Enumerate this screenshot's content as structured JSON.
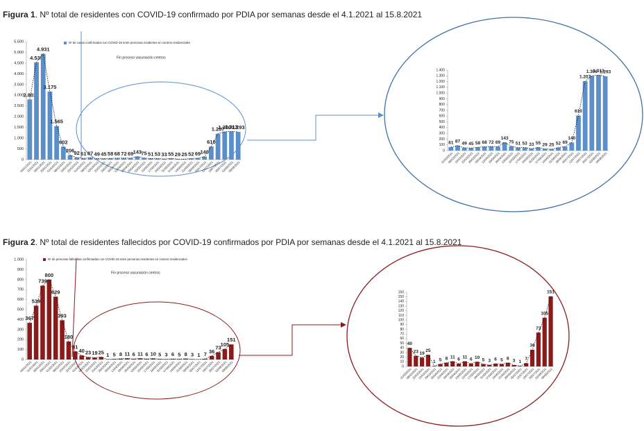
{
  "figures": [
    {
      "label": "Figura 1",
      "caption": ". Nº total de residentes con COVID-19 confirmado por PDIA por semanas desde el 4.1.2021 al 15.8.2021"
    },
    {
      "label": "Figura 2",
      "caption": ". Nº total de residentes fallecidos por COVID-19 confirmados por PDIA por semanas desde el 4.1.2021 al 15.8.2021"
    }
  ],
  "chart_data": [
    {
      "type": "bar",
      "color": "#5b8fc9",
      "legend": "Nº de casos confirmados con COVID-19 entre personas residentes en centros residenciales",
      "annotation": "Fin proceso vacunación centros",
      "categories": [
        "04/01/2021",
        "11/01/2021",
        "18/01/2021",
        "25/01/2021",
        "01/02/2021",
        "08/02/2021",
        "15/02/2021",
        "22/02/2021",
        "01/03/2021",
        "08/03/2021",
        "15/03/2021",
        "22/03/2021",
        "29/03/2021",
        "05/04/2021",
        "12/04/2021",
        "19/04/2021",
        "26/04/2021",
        "03/05/2021",
        "10/05/2021",
        "17/05/2021",
        "24/05/2021",
        "31/05/2021",
        "07/06/2021",
        "14/06/2021",
        "21/06/2021",
        "28/06/2021",
        "05/07/2021",
        "12/07/2021",
        "19/07/2021",
        "26/07/2021",
        "02/08/2021",
        "09/08/2021"
      ],
      "values": [
        2803,
        4535,
        4931,
        3175,
        1565,
        602,
        206,
        92,
        61,
        87,
        49,
        45,
        58,
        68,
        72,
        69,
        143,
        75,
        51,
        53,
        33,
        55,
        29,
        25,
        52,
        69,
        140,
        610,
        1207,
        1300,
        1313,
        1293
      ],
      "value_labels": [
        "2.803",
        "4.535",
        "4.931",
        "3.175",
        "1.565",
        "602",
        "206",
        "92",
        "61",
        "87",
        "49",
        "45",
        "58",
        "68",
        "72",
        "69",
        "143",
        "75",
        "51",
        "53",
        "33",
        "55",
        "29",
        "25",
        "52",
        "69",
        "140",
        "610",
        "1.207",
        "1.300",
        "1.313",
        "1.293"
      ],
      "ylim": [
        0,
        5500
      ],
      "yticks": [
        0,
        500,
        {
          "value": 1000,
          "label": "1.000"
        },
        {
          "value": 1500,
          "label": "1.500"
        },
        {
          "value": 2000,
          "label": "2.000"
        },
        {
          "value": 2500,
          "label": "2.500"
        },
        {
          "value": 3000,
          "label": "3.000"
        },
        {
          "value": 3500,
          "label": "3.500"
        },
        {
          "value": 4000,
          "label": "4.000"
        },
        {
          "value": 4500,
          "label": "4.500"
        },
        {
          "value": 5000,
          "label": "5.000"
        },
        {
          "value": 5500,
          "label": "5.500"
        }
      ]
    },
    {
      "type": "bar",
      "color": "#5b8fc9",
      "categories": [
        "01/03/2021",
        "08/03/2021",
        "15/03/2021",
        "22/03/2021",
        "29/03/2021",
        "05/04/2021",
        "12/04/2021",
        "19/04/2021",
        "26/04/2021",
        "03/05/2021",
        "10/05/2021",
        "17/05/2021",
        "24/05/2021",
        "31/05/2021",
        "07/06/2021",
        "14/06/2021",
        "21/06/2021",
        "28/06/2021",
        "05/07/2021",
        "12/07/2021",
        "19/07/2021",
        "26/07/2021",
        "02/08/2021",
        "09/08/2021"
      ],
      "values": [
        61,
        87,
        49,
        45,
        58,
        68,
        72,
        69,
        143,
        75,
        51,
        53,
        33,
        55,
        29,
        25,
        52,
        69,
        140,
        610,
        1207,
        1300,
        1313,
        1293
      ],
      "value_labels": [
        "61",
        "87",
        "49",
        "45",
        "58",
        "68",
        "72",
        "69",
        "143",
        "75",
        "51",
        "53",
        "33",
        "55",
        "29",
        "25",
        "52",
        "69",
        "140",
        "610",
        "1.207",
        "1.300",
        "1.313",
        "1.293"
      ],
      "ylim": [
        0,
        1400
      ],
      "yticks": [
        0,
        100,
        200,
        300,
        400,
        500,
        600,
        700,
        800,
        900,
        {
          "value": 1000,
          "label": "1.000"
        },
        {
          "value": 1100,
          "label": "1.100"
        },
        {
          "value": 1200,
          "label": "1.200"
        },
        {
          "value": 1300,
          "label": "1.300"
        },
        {
          "value": 1400,
          "label": "1.400"
        }
      ]
    },
    {
      "type": "bar",
      "color": "#8b1a1a",
      "legend": "Nº de personas fallecidas confirmadas con COVID-19 entre personas residentes en centros residenciales",
      "annotation": "Fin proceso vacunación centros",
      "categories": [
        "04/01/2021",
        "11/01/2021",
        "18/01/2021",
        "25/01/2021",
        "01/02/2021",
        "08/02/2021",
        "15/02/2021",
        "22/02/2021",
        "01/03/2021",
        "08/03/2021",
        "15/03/2021",
        "22/03/2021",
        "29/03/2021",
        "05/04/2021",
        "12/04/2021",
        "19/04/2021",
        "26/04/2021",
        "03/05/2021",
        "10/05/2021",
        "17/05/2021",
        "24/05/2021",
        "31/05/2021",
        "07/06/2021",
        "14/06/2021",
        "21/06/2021",
        "28/06/2021",
        "05/07/2021",
        "12/07/2021",
        "19/07/2021",
        "26/07/2021",
        "02/08/2021",
        "09/08/2021"
      ],
      "values": [
        367,
        539,
        739,
        800,
        629,
        393,
        180,
        81,
        40,
        23,
        19,
        25,
        1,
        5,
        8,
        11,
        6,
        11,
        6,
        10,
        5,
        3,
        6,
        5,
        8,
        3,
        1,
        7,
        36,
        73,
        105,
        151
      ],
      "ylim": [
        0,
        1000
      ],
      "yticks": [
        0,
        100,
        200,
        300,
        400,
        500,
        600,
        700,
        800,
        900,
        {
          "value": 1000,
          "label": "1.000"
        }
      ]
    },
    {
      "type": "bar",
      "color": "#8b1a1a",
      "categories": [
        "01/03/2021",
        "08/03/2021",
        "15/03/2021",
        "22/03/2021",
        "29/03/2021",
        "05/04/2021",
        "12/04/2021",
        "19/04/2021",
        "26/04/2021",
        "03/05/2021",
        "10/05/2021",
        "17/05/2021",
        "24/05/2021",
        "31/05/2021",
        "07/06/2021",
        "14/06/2021",
        "21/06/2021",
        "28/06/2021",
        "05/07/2021",
        "12/07/2021",
        "19/07/2021",
        "26/07/2021",
        "02/08/2021",
        "09/08/2021"
      ],
      "values": [
        40,
        23,
        19,
        25,
        1,
        5,
        8,
        11,
        6,
        11,
        6,
        10,
        5,
        3,
        6,
        5,
        8,
        3,
        1,
        7,
        36,
        73,
        105,
        151
      ],
      "ylim": [
        0,
        160
      ],
      "yticks": [
        0,
        10,
        20,
        30,
        40,
        50,
        60,
        70,
        80,
        90,
        100,
        110,
        120,
        130,
        140,
        150,
        160
      ]
    }
  ]
}
